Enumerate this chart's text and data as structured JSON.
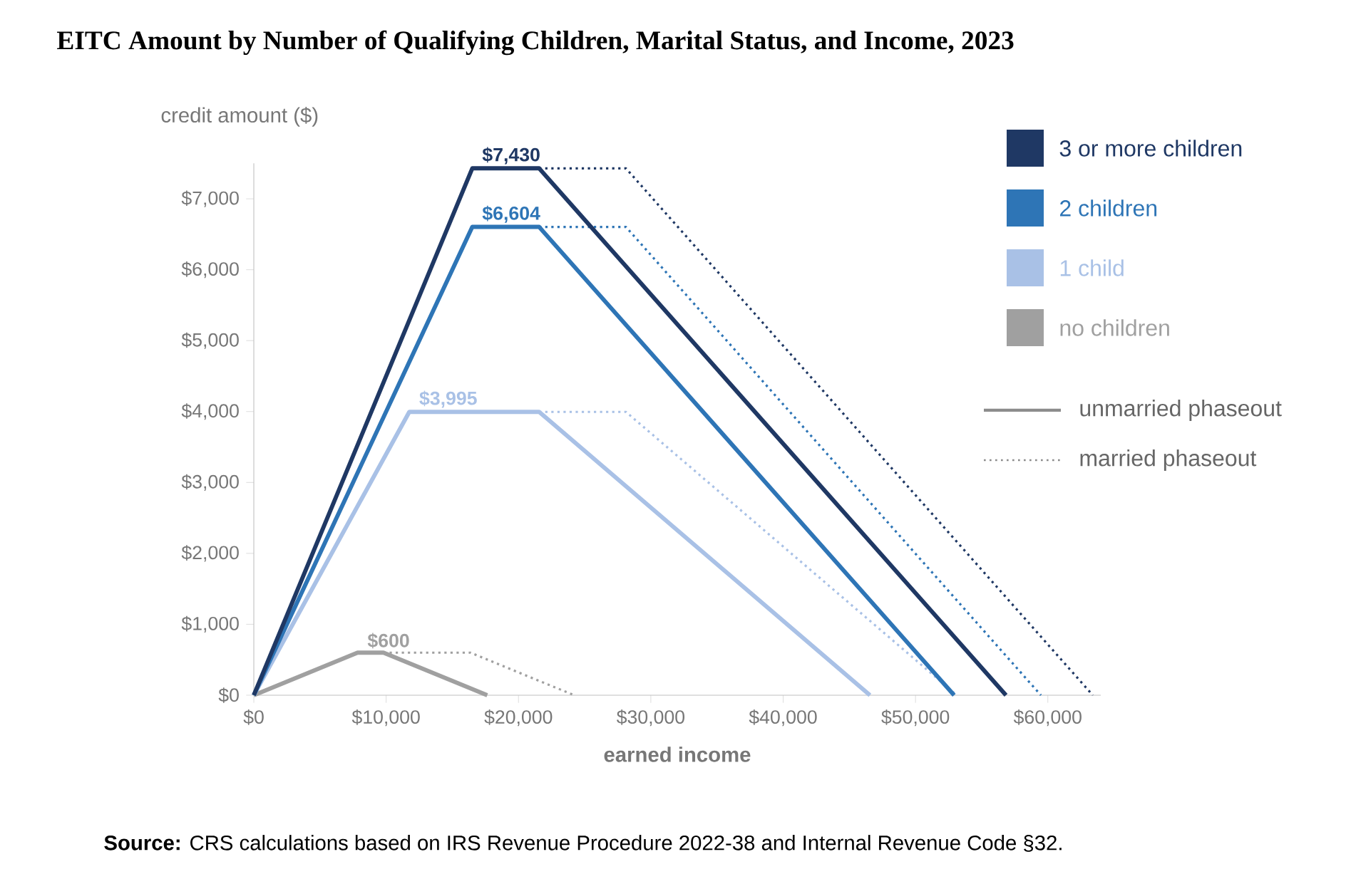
{
  "chart_data": {
    "type": "line",
    "title": "EITC Amount by Number of Qualifying Children, Marital Status, and Income, 2023",
    "xlabel": "earned income",
    "ylabel": "credit amount ($)",
    "xlim": [
      0,
      64000
    ],
    "ylim": [
      0,
      7500
    ],
    "xticks": [
      {
        "value": 0,
        "label": "$0"
      },
      {
        "value": 10000,
        "label": "$10,000"
      },
      {
        "value": 20000,
        "label": "$20,000"
      },
      {
        "value": 30000,
        "label": "$30,000"
      },
      {
        "value": 40000,
        "label": "$40,000"
      },
      {
        "value": 50000,
        "label": "$50,000"
      },
      {
        "value": 60000,
        "label": "$60,000"
      }
    ],
    "yticks": [
      {
        "value": 0,
        "label": "$0"
      },
      {
        "value": 1000,
        "label": "$1,000"
      },
      {
        "value": 2000,
        "label": "$2,000"
      },
      {
        "value": 3000,
        "label": "$3,000"
      },
      {
        "value": 4000,
        "label": "$4,000"
      },
      {
        "value": 5000,
        "label": "$5,000"
      },
      {
        "value": 6000,
        "label": "$6,000"
      },
      {
        "value": 7000,
        "label": "$7,000"
      }
    ],
    "grid": false,
    "legend": "right",
    "marker": "none",
    "line_style": "solid",
    "series": [
      {
        "name": "3 or more children",
        "color": "#1f3864",
        "x": [
          0,
          16510,
          21560,
          56838
        ],
        "values": [
          0,
          7430,
          7430,
          0
        ],
        "value_labels": [
          null,
          "$7,430",
          null,
          null
        ]
      },
      {
        "name": "2 children",
        "color": "#2e75b6",
        "x": [
          0,
          16510,
          21560,
          52918
        ],
        "values": [
          0,
          6604,
          6604,
          0
        ],
        "value_labels": [
          null,
          "$6,604",
          null,
          null
        ]
      },
      {
        "name": "1 child",
        "color": "#a9c1e6",
        "x": [
          0,
          11750,
          21560,
          46560
        ],
        "values": [
          0,
          3995,
          3995,
          0
        ],
        "value_labels": [
          null,
          "$3,995",
          null,
          null
        ]
      },
      {
        "name": "no children",
        "color": "#a0a0a0",
        "x": [
          0,
          7840,
          9800,
          17640
        ],
        "values": [
          0,
          600,
          600,
          0
        ],
        "value_labels": [
          null,
          "$600",
          null,
          null
        ]
      },
      {
        "color": "#1f3864",
        "line_style": "dotted",
        "x": [
          21560,
          28120,
          63398
        ],
        "values": [
          7430,
          7430,
          0
        ]
      },
      {
        "color": "#2e75b6",
        "line_style": "dotted",
        "x": [
          21560,
          28120,
          59478
        ],
        "values": [
          6604,
          6604,
          0
        ]
      },
      {
        "color": "#a9c1e6",
        "line_style": "dotted",
        "x": [
          21560,
          28120,
          53120
        ],
        "values": [
          3995,
          3995,
          0
        ]
      },
      {
        "color": "#a0a0a0",
        "line_style": "dotted",
        "x": [
          9800,
          16370,
          24210
        ],
        "values": [
          600,
          600,
          0
        ]
      }
    ],
    "annotations": [
      "unmarried phaseout",
      "married phaseout",
      "**Source:** CRS calculations based on IRS Revenue Procedure 2022-38 and Internal Revenue Code §32."
    ]
  }
}
